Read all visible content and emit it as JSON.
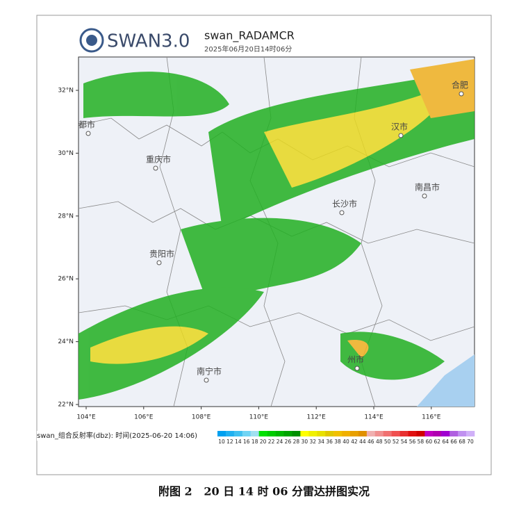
{
  "header": {
    "logo_text": "SWAN3.0",
    "product": "swan_RADAMCR",
    "time": "2025年06月20日14时06分"
  },
  "map": {
    "lat_labels": [
      "32°N",
      "30°N",
      "28°N",
      "26°N",
      "24°N",
      "22°N"
    ],
    "lon_labels": [
      "104°E",
      "106°E",
      "108°E",
      "110°E",
      "112°E",
      "114°E",
      "116°E"
    ],
    "cities": [
      "都市",
      "重庆市",
      "贵阳市",
      "南宁市",
      "长沙市",
      "汉市",
      "南昌市",
      "合肥",
      "州市"
    ]
  },
  "legend": {
    "label": "swan_组合反射率(dbz): 时间(2025-06-20 14:06)",
    "values": [
      10,
      12,
      14,
      16,
      18,
      20,
      22,
      24,
      26,
      28,
      30,
      32,
      34,
      36,
      38,
      40,
      42,
      44,
      46,
      48,
      50,
      52,
      54,
      56,
      58,
      60,
      62,
      64,
      66,
      68,
      70
    ],
    "colors": [
      "#00a0f0",
      "#20b0f0",
      "#40c0f0",
      "#70d4f4",
      "#a0e0f0",
      "#00e000",
      "#00cc00",
      "#00b800",
      "#00a400",
      "#009000",
      "#ffff00",
      "#f0f000",
      "#e8e000",
      "#e0c800",
      "#f0c000",
      "#f0b000",
      "#e8a000",
      "#e09000",
      "#f0b0b0",
      "#f09090",
      "#f07070",
      "#f05050",
      "#e83030",
      "#e01010",
      "#d00000",
      "#c000c0",
      "#b000b0",
      "#a000d0",
      "#b060e0",
      "#c090f0",
      "#d0b0f8"
    ]
  },
  "caption": "附图 2   20 日 14 时 06 分雷达拼图实况"
}
